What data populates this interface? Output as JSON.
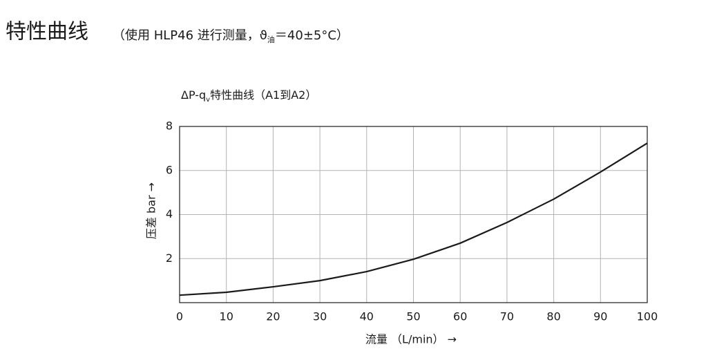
{
  "header": {
    "title": "特性曲线",
    "subtitle": [
      "（使用 HLP46 进行测量，ϑ",
      "油",
      "＝40±5°C）"
    ]
  },
  "chart_data": {
    "type": "line",
    "title": [
      "ΔP-q",
      "v",
      "特性曲线（A1到A2）"
    ],
    "x_label": "流量 （L/min） →",
    "y_label": "压差  bar →",
    "x": [
      0,
      10,
      20,
      30,
      40,
      50,
      60,
      70,
      80,
      90,
      100
    ],
    "values": [
      0.34,
      0.47,
      0.72,
      1.0,
      1.41,
      1.97,
      2.7,
      3.64,
      4.7,
      5.93,
      7.24
    ],
    "color": "#1a1a1a",
    "xlim": [
      0,
      100
    ],
    "xticks": [
      0,
      10,
      20,
      30,
      40,
      50,
      60,
      70,
      80,
      90,
      100
    ],
    "ylim": [
      0,
      8
    ],
    "yticks": [
      2,
      4,
      6,
      8
    ],
    "grid": true
  }
}
